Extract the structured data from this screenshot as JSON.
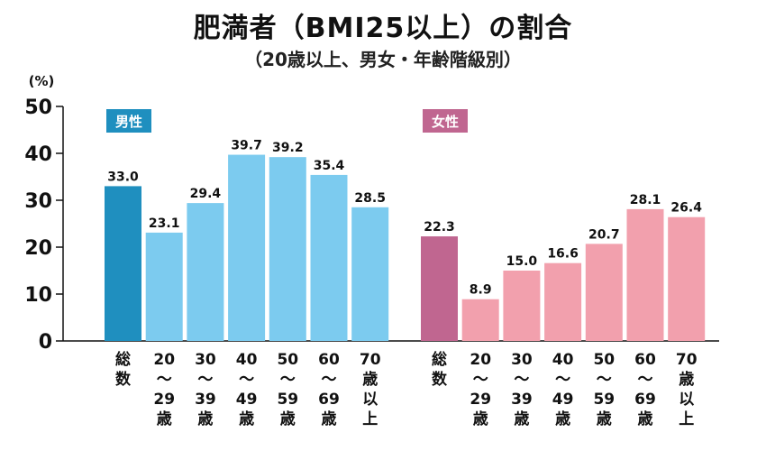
{
  "title": "肥満者（BMI25以上）の割合",
  "subtitle": "（20歳以上、男女・年齢階級別）",
  "chart_data": {
    "type": "bar",
    "title": "肥満者（BMI25以上）の割合",
    "subtitle": "（20歳以上、男女・年齢階級別）",
    "ylabel": "(%)",
    "ylim": [
      0,
      50
    ],
    "yticks": [
      0,
      10,
      20,
      30,
      40,
      50
    ],
    "grid": false,
    "categories": [
      [
        "総",
        "数"
      ],
      [
        "20",
        "〜",
        "29",
        "歳"
      ],
      [
        "30",
        "〜",
        "39",
        "歳"
      ],
      [
        "40",
        "〜",
        "49",
        "歳"
      ],
      [
        "50",
        "〜",
        "59",
        "歳"
      ],
      [
        "60",
        "〜",
        "69",
        "歳"
      ],
      [
        "70",
        "歳",
        "以",
        "上"
      ]
    ],
    "series": [
      {
        "name": "男性",
        "total_color": "#1f8fbf",
        "color": "#7ccbef",
        "legend_color": "#1f8fbf",
        "values": [
          33.0,
          23.1,
          29.4,
          39.7,
          39.2,
          35.4,
          28.5
        ]
      },
      {
        "name": "女性",
        "total_color": "#c06690",
        "color": "#f2a0ad",
        "legend_color": "#c06690",
        "values": [
          22.3,
          8.9,
          15.0,
          16.6,
          20.7,
          28.1,
          26.4
        ]
      }
    ]
  }
}
